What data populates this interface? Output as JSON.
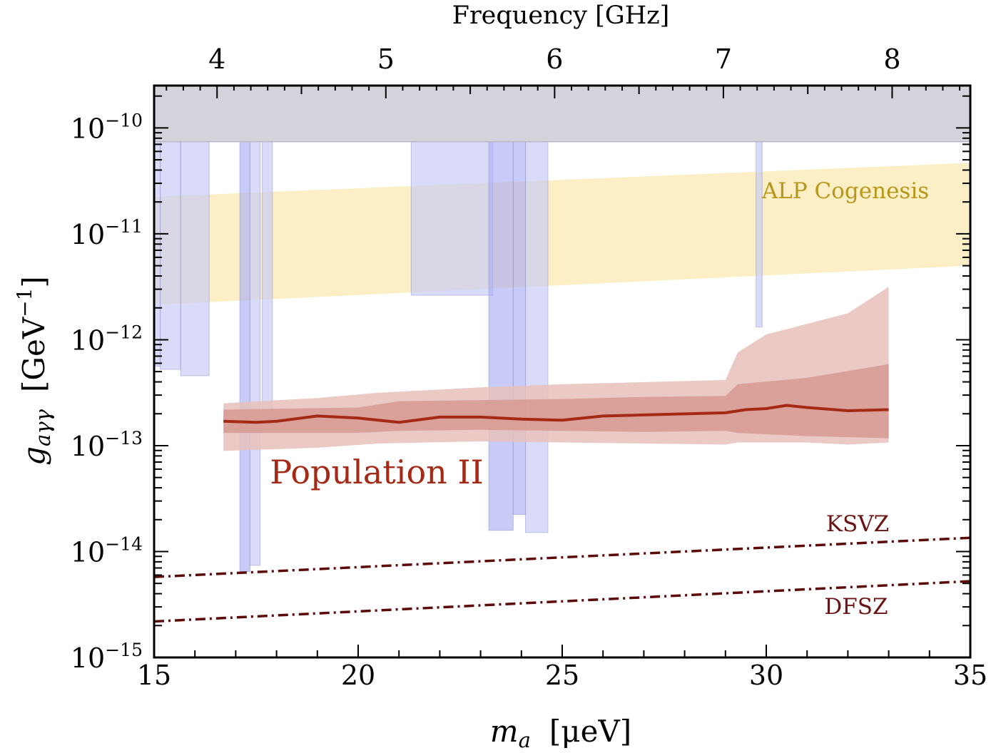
{
  "chart_data": {
    "type": "area",
    "title": "",
    "xlabel": {
      "italic": "m",
      "sub": "a",
      "rest": "[μeV]"
    },
    "ylabel": {
      "italic": "g",
      "sub": "aγγ",
      "rest": "[GeV",
      "sup": "−1",
      "close": "]"
    },
    "top_xlabel": "Frequency [GHz]",
    "xlim": [
      15,
      35
    ],
    "ylim_log10": [
      -15,
      -9.6
    ],
    "x_ticks": [
      {
        "value": 15,
        "label": "15"
      },
      {
        "value": 20,
        "label": "20"
      },
      {
        "value": 25,
        "label": "25"
      },
      {
        "value": 30,
        "label": "30"
      },
      {
        "value": 35,
        "label": "35"
      }
    ],
    "y_ticks": [
      {
        "exp": -10,
        "base": "10",
        "sup": "−10"
      },
      {
        "exp": -11,
        "base": "10",
        "sup": "−11"
      },
      {
        "exp": -12,
        "base": "10",
        "sup": "−12"
      },
      {
        "exp": -13,
        "base": "10",
        "sup": "−13"
      },
      {
        "exp": -14,
        "base": "10",
        "sup": "−14"
      },
      {
        "exp": -15,
        "base": "10",
        "sup": "−15"
      }
    ],
    "top_ticks": [
      {
        "value": 4,
        "label": "4"
      },
      {
        "value": 5,
        "label": "5"
      },
      {
        "value": 6,
        "label": "6"
      },
      {
        "value": 7,
        "label": "7"
      },
      {
        "value": 8,
        "label": "8"
      }
    ],
    "ghz_per_uev": 0.2418,
    "colors": {
      "excluded_top": "#d3d3dc",
      "haloscope": "#c6c8f6",
      "haloscope_dark": "#aaaef2",
      "cogenesis": "#fcefc6",
      "pop_outer": "#e7c1bb",
      "pop_inner": "#d69a92",
      "pop_line": "#a52a16",
      "qcd_line": "#5c0a0a",
      "cogenesis_label": "#b8961a",
      "pop_label": "#a52a16",
      "qcd_label": "#6b1212"
    },
    "series": [
      {
        "name": "excluded_top",
        "low_log10": -10.13,
        "high_log10": -9.6
      },
      {
        "name": "ALP Cogenesis",
        "x": [
          15,
          35
        ],
        "low_log10": [
          -11.67,
          -11.3
        ],
        "high_log10": [
          -10.65,
          -10.33
        ]
      },
      {
        "name": "Population II median",
        "x": [
          16.7,
          17.5,
          18,
          19,
          20,
          21,
          22,
          23,
          24,
          25,
          26,
          27,
          28,
          29,
          29.5,
          30,
          30.5,
          31,
          32,
          33
        ],
        "log10": [
          -12.77,
          -12.78,
          -12.77,
          -12.72,
          -12.74,
          -12.78,
          -12.73,
          -12.73,
          -12.75,
          -12.76,
          -12.72,
          -12.71,
          -12.7,
          -12.69,
          -12.66,
          -12.65,
          -12.62,
          -12.64,
          -12.67,
          -12.66
        ]
      },
      {
        "name": "Population II inner band",
        "x": [
          16.7,
          20,
          21,
          23,
          25,
          27,
          29,
          29.3,
          31,
          33
        ],
        "high_log10": [
          -12.66,
          -12.64,
          -12.58,
          -12.57,
          -12.56,
          -12.54,
          -12.53,
          -12.42,
          -12.36,
          -12.23
        ],
        "low_log10": [
          -12.88,
          -12.88,
          -12.86,
          -12.85,
          -12.86,
          -12.87,
          -12.86,
          -12.88,
          -12.91,
          -12.93
        ]
      },
      {
        "name": "Population II outer band",
        "x": [
          16.7,
          19,
          20.5,
          23,
          25,
          27,
          29,
          29.3,
          30,
          31,
          32,
          33
        ],
        "high_log10": [
          -12.6,
          -12.55,
          -12.5,
          -12.45,
          -12.42,
          -12.4,
          -12.38,
          -12.12,
          -11.95,
          -11.85,
          -11.75,
          -11.5
        ],
        "low_log10": [
          -13.05,
          -13.02,
          -12.98,
          -12.96,
          -12.97,
          -12.98,
          -12.99,
          -12.97,
          -12.97,
          -12.97,
          -12.99,
          -12.97
        ]
      },
      {
        "name": "KSVZ",
        "x": [
          15,
          35
        ],
        "log10": [
          -14.24,
          -13.87
        ]
      },
      {
        "name": "DFSZ",
        "x": [
          15,
          35
        ],
        "log10": [
          -14.66,
          -14.28
        ]
      }
    ],
    "haloscope_bands": [
      {
        "x0": 15.0,
        "x1": 15.15,
        "low_log10": -12.25,
        "top_log10": -10.13,
        "dark": false
      },
      {
        "x0": 15.15,
        "x1": 15.65,
        "low_log10": -12.28,
        "top_log10": -10.13,
        "dark": false
      },
      {
        "x0": 15.65,
        "x1": 16.35,
        "low_log10": -12.34,
        "top_log10": -10.13,
        "dark": false
      },
      {
        "x0": 17.1,
        "x1": 17.35,
        "low_log10": -14.19,
        "top_log10": -10.13,
        "dark": true
      },
      {
        "x0": 17.35,
        "x1": 17.6,
        "low_log10": -14.13,
        "top_log10": -10.13,
        "dark": false
      },
      {
        "x0": 17.65,
        "x1": 17.9,
        "low_log10": -12.72,
        "top_log10": -10.13,
        "dark": false
      },
      {
        "x0": 21.3,
        "x1": 23.3,
        "low_log10": -11.58,
        "top_log10": -10.13,
        "dark": false
      },
      {
        "x0": 23.2,
        "x1": 23.8,
        "low_log10": -13.8,
        "top_log10": -10.13,
        "dark": true
      },
      {
        "x0": 23.8,
        "x1": 24.1,
        "low_log10": -13.65,
        "top_log10": -10.13,
        "dark": true
      },
      {
        "x0": 24.1,
        "x1": 24.65,
        "low_log10": -13.82,
        "top_log10": -10.13,
        "dark": false
      },
      {
        "x0": 29.75,
        "x1": 29.9,
        "low_log10": -11.88,
        "top_log10": -10.13,
        "dark": false
      }
    ],
    "annotations": [
      {
        "id": "cogenesis",
        "text": "ALP Cogenesis"
      },
      {
        "id": "population",
        "text": "Population II"
      },
      {
        "id": "ksvz",
        "text": "KSVZ"
      },
      {
        "id": "dfsz",
        "text": "DFSZ"
      }
    ]
  }
}
